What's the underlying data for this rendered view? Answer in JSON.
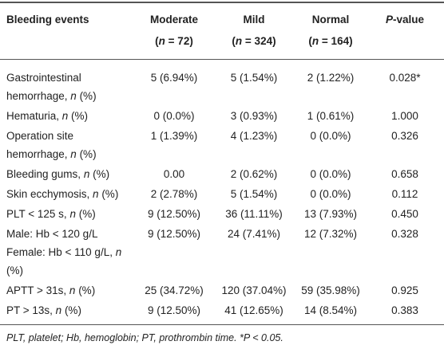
{
  "table": {
    "header": [
      [
        "Bleeding events"
      ],
      [
        "Moderate",
        "(",
        {
          "text": "n",
          "italic": true
        },
        " = 72)"
      ],
      [
        "Mild",
        "(",
        {
          "text": "n",
          "italic": true
        },
        " = 324)"
      ],
      [
        "Normal",
        "(",
        {
          "text": "n",
          "italic": true
        },
        " = 164)"
      ],
      [
        {
          "text": "P",
          "italic": true
        },
        "-value"
      ]
    ],
    "rows": [
      [
        [
          "Gastrointestinal hemorrhage, ",
          {
            "text": "n",
            "italic": true
          },
          " (%)"
        ],
        [
          "5 (6.94%)"
        ],
        [
          "5 (1.54%)"
        ],
        [
          "2 (1.22%)"
        ],
        [
          "0.028*"
        ]
      ],
      [
        [
          "Hematuria, ",
          {
            "text": "n",
            "italic": true
          },
          " (%)"
        ],
        [
          "0 (0.0%)"
        ],
        [
          "3 (0.93%)"
        ],
        [
          "1 (0.61%)"
        ],
        [
          "1.000"
        ]
      ],
      [
        [
          "Operation site hemorrhage, ",
          {
            "text": "n",
            "italic": true
          },
          " (%)"
        ],
        [
          "1 (1.39%)"
        ],
        [
          "4 (1.23%)"
        ],
        [
          "0 (0.0%)"
        ],
        [
          "0.326"
        ]
      ],
      [
        [
          "Bleeding gums, ",
          {
            "text": "n",
            "italic": true
          },
          " (%)"
        ],
        [
          "0.00"
        ],
        [
          "2 (0.62%)"
        ],
        [
          "0 (0.0%)"
        ],
        [
          "0.658"
        ]
      ],
      [
        [
          "Skin ecchymosis, ",
          {
            "text": "n",
            "italic": true
          },
          " (%)"
        ],
        [
          "2 (2.78%)"
        ],
        [
          "5 (1.54%)"
        ],
        [
          "0 (0.0%)"
        ],
        [
          "0.112"
        ]
      ],
      [
        [
          "PLT < 125 s, ",
          {
            "text": "n",
            "italic": true
          },
          " (%)"
        ],
        [
          "9 (12.50%)"
        ],
        [
          "36 (11.11%)"
        ],
        [
          "13 (7.93%)"
        ],
        [
          "0.450"
        ]
      ],
      [
        [
          "Male: Hb < 120 g/L",
          "Female: Hb < 110 g/L, ",
          {
            "text": "n",
            "italic": true
          },
          " (%)"
        ],
        [
          "9 (12.50%)"
        ],
        [
          "24 (7.41%)"
        ],
        [
          "12 (7.32%)"
        ],
        [
          "0.328"
        ]
      ],
      [
        [
          "APTT > 31s, ",
          {
            "text": "n",
            "italic": true
          },
          " (%)"
        ],
        [
          "25 (34.72%)"
        ],
        [
          "120 (37.04%)"
        ],
        [
          "59 (35.98%)"
        ],
        [
          "0.925"
        ]
      ],
      [
        [
          "PT > 13s, ",
          {
            "text": "n",
            "italic": true
          },
          " (%)"
        ],
        [
          "9 (12.50%)"
        ],
        [
          "41 (12.65%)"
        ],
        [
          "14 (8.54%)"
        ],
        [
          "0.383"
        ]
      ]
    ]
  },
  "footnote": "PLT, platelet; Hb, hemoglobin; PT, prothrombin time. *P < 0.05."
}
